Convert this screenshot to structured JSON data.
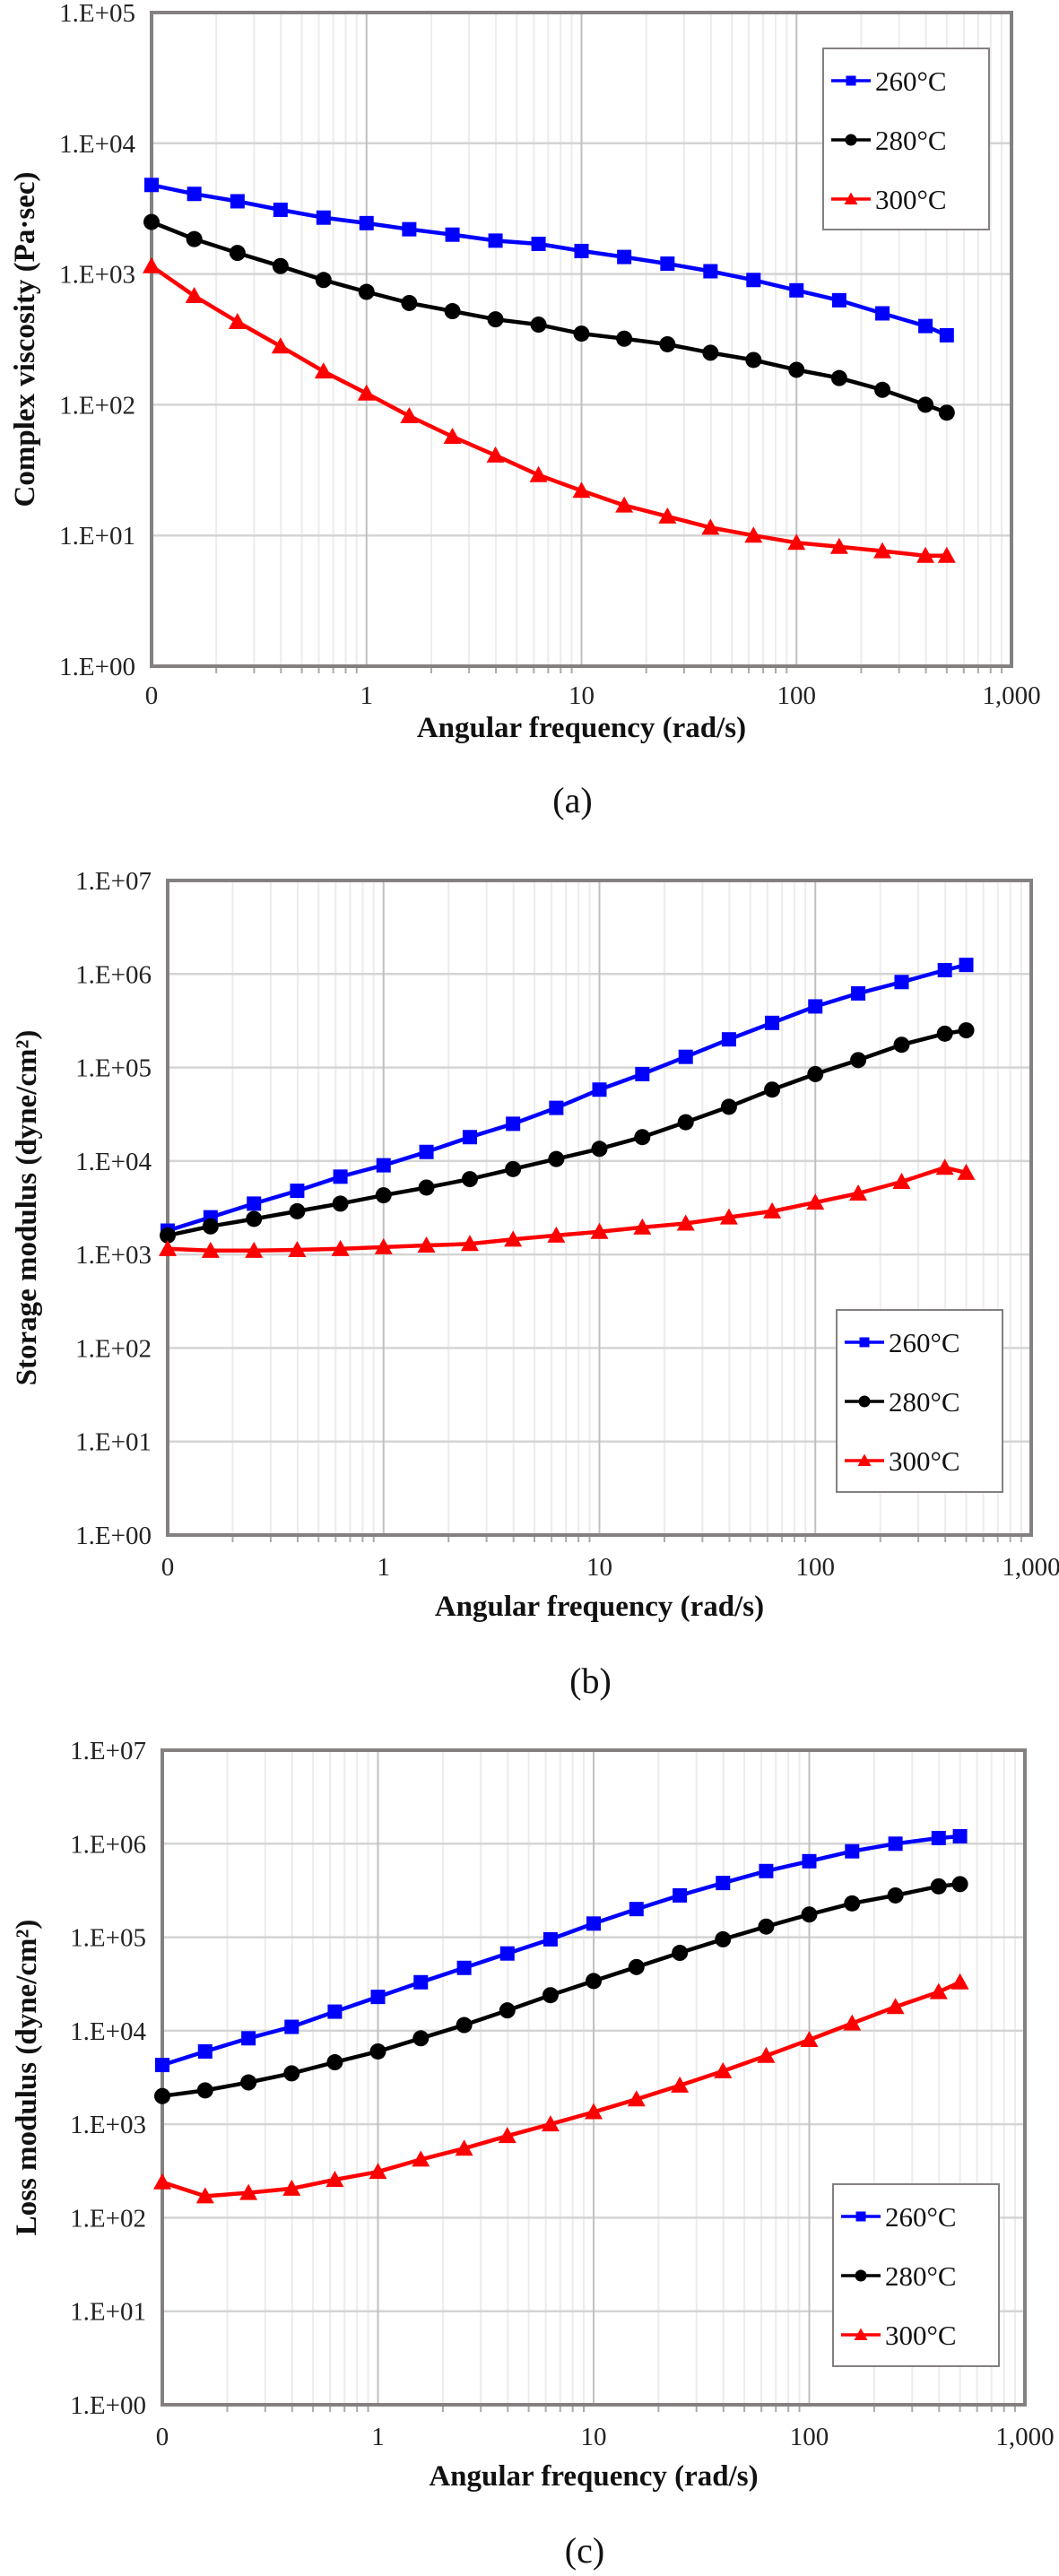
{
  "chart_data": [
    {
      "type": "line",
      "panel": "(a)",
      "caption": "(a)",
      "xlabel": "Angular frequency (rad/s)",
      "ylabel": "Complex viscosity (Pa·sec)",
      "xscale": "log",
      "yscale": "log",
      "xlim": [
        0.1,
        1000
      ],
      "ylim": [
        1,
        100000
      ],
      "xtick_labels": [
        "0",
        "1",
        "10",
        "100",
        "1,000"
      ],
      "ytick_labels": [
        "1.E+00",
        "1.E+01",
        "1.E+02",
        "1.E+03",
        "1.E+04",
        "1.E+05"
      ],
      "grid": true,
      "legend_position": "top-right",
      "x": [
        0.1,
        0.158,
        0.251,
        0.398,
        0.631,
        1,
        1.58,
        2.51,
        3.98,
        6.31,
        10,
        15.8,
        25.1,
        39.8,
        63.1,
        100,
        158,
        251,
        398,
        500
      ],
      "series": [
        {
          "name": "260°C",
          "color": "#0000ff",
          "marker": "square",
          "values": [
            4800,
            4100,
            3600,
            3100,
            2700,
            2450,
            2200,
            2000,
            1800,
            1700,
            1500,
            1350,
            1200,
            1050,
            900,
            750,
            630,
            500,
            400,
            340
          ]
        },
        {
          "name": "280°C",
          "color": "#000000",
          "marker": "circle",
          "values": [
            2500,
            1850,
            1450,
            1150,
            900,
            730,
            600,
            520,
            450,
            410,
            350,
            320,
            290,
            250,
            220,
            185,
            160,
            130,
            100,
            87
          ]
        },
        {
          "name": "300°C",
          "color": "#ff0000",
          "marker": "triangle",
          "values": [
            1150,
            680,
            430,
            280,
            180,
            122,
            82,
            57,
            41,
            29,
            22,
            17,
            14,
            11.5,
            10,
            8.8,
            8.2,
            7.6,
            7,
            7
          ]
        }
      ]
    },
    {
      "type": "line",
      "panel": "(b)",
      "caption": "(b)",
      "xlabel": "Angular frequency (rad/s)",
      "ylabel": "Storage modulus (dyne/cm²)",
      "xscale": "log",
      "yscale": "log",
      "xlim": [
        0.1,
        1000
      ],
      "ylim": [
        1,
        10000000
      ],
      "xtick_labels": [
        "0",
        "1",
        "10",
        "100",
        "1,000"
      ],
      "ytick_labels": [
        "1.E+00",
        "1.E+01",
        "1.E+02",
        "1.E+03",
        "1.E+04",
        "1.E+05",
        "1.E+06",
        "1.E+07"
      ],
      "grid": true,
      "legend_position": "bottom-right",
      "x": [
        0.1,
        0.158,
        0.251,
        0.398,
        0.631,
        1,
        1.58,
        2.51,
        3.98,
        6.31,
        10,
        15.8,
        25.1,
        39.8,
        63.1,
        100,
        158,
        251,
        398,
        500
      ],
      "series": [
        {
          "name": "260°C",
          "color": "#0000ff",
          "marker": "square",
          "values": [
            1800,
            2500,
            3500,
            4800,
            6800,
            9000,
            12500,
            18000,
            25000,
            37000,
            58000,
            85000,
            130000,
            200000,
            300000,
            450000,
            620000,
            820000,
            1100000,
            1250000
          ]
        },
        {
          "name": "280°C",
          "color": "#000000",
          "marker": "circle",
          "values": [
            1600,
            2000,
            2400,
            2900,
            3500,
            4300,
            5200,
            6400,
            8200,
            10500,
            13500,
            18000,
            26000,
            38000,
            58000,
            85000,
            120000,
            175000,
            230000,
            250000
          ]
        },
        {
          "name": "300°C",
          "color": "#ff0000",
          "marker": "triangle",
          "values": [
            1150,
            1100,
            1100,
            1120,
            1150,
            1200,
            1250,
            1300,
            1450,
            1600,
            1750,
            1950,
            2150,
            2500,
            2900,
            3600,
            4500,
            6000,
            8500,
            7500
          ]
        }
      ]
    },
    {
      "type": "line",
      "panel": "(c)",
      "caption": "(c)",
      "xlabel": "Angular frequency (rad/s)",
      "ylabel": "Loss modulus  (dyne/cm²)",
      "xscale": "log",
      "yscale": "log",
      "xlim": [
        0.1,
        1000
      ],
      "ylim": [
        1,
        10000000
      ],
      "xtick_labels": [
        "0",
        "1",
        "10",
        "100",
        "1,000"
      ],
      "ytick_labels": [
        "1.E+00",
        "1.E+01",
        "1.E+02",
        "1.E+03",
        "1.E+04",
        "1.E+05",
        "1.E+06",
        "1.E+07"
      ],
      "grid": true,
      "legend_position": "bottom-right",
      "x": [
        0.1,
        0.158,
        0.251,
        0.398,
        0.631,
        1,
        1.58,
        2.51,
        3.98,
        6.31,
        10,
        15.8,
        25.1,
        39.8,
        63.1,
        100,
        158,
        251,
        398,
        500
      ],
      "series": [
        {
          "name": "260°C",
          "color": "#0000ff",
          "marker": "square",
          "values": [
            4300,
            6000,
            8300,
            11000,
            16000,
            23000,
            33000,
            47000,
            67000,
            95000,
            140000,
            200000,
            280000,
            380000,
            510000,
            650000,
            830000,
            1000000,
            1150000,
            1200000
          ]
        },
        {
          "name": "280°C",
          "color": "#000000",
          "marker": "circle",
          "values": [
            2000,
            2300,
            2800,
            3500,
            4600,
            6000,
            8300,
            11500,
            16500,
            24000,
            34000,
            48000,
            68000,
            95000,
            130000,
            175000,
            230000,
            280000,
            350000,
            370000
          ]
        },
        {
          "name": "300°C",
          "color": "#ff0000",
          "marker": "triangle",
          "values": [
            240,
            170,
            185,
            205,
            255,
            310,
            420,
            550,
            750,
            1000,
            1350,
            1850,
            2600,
            3700,
            5400,
            8000,
            12000,
            18000,
            26000,
            33000
          ]
        }
      ]
    }
  ]
}
